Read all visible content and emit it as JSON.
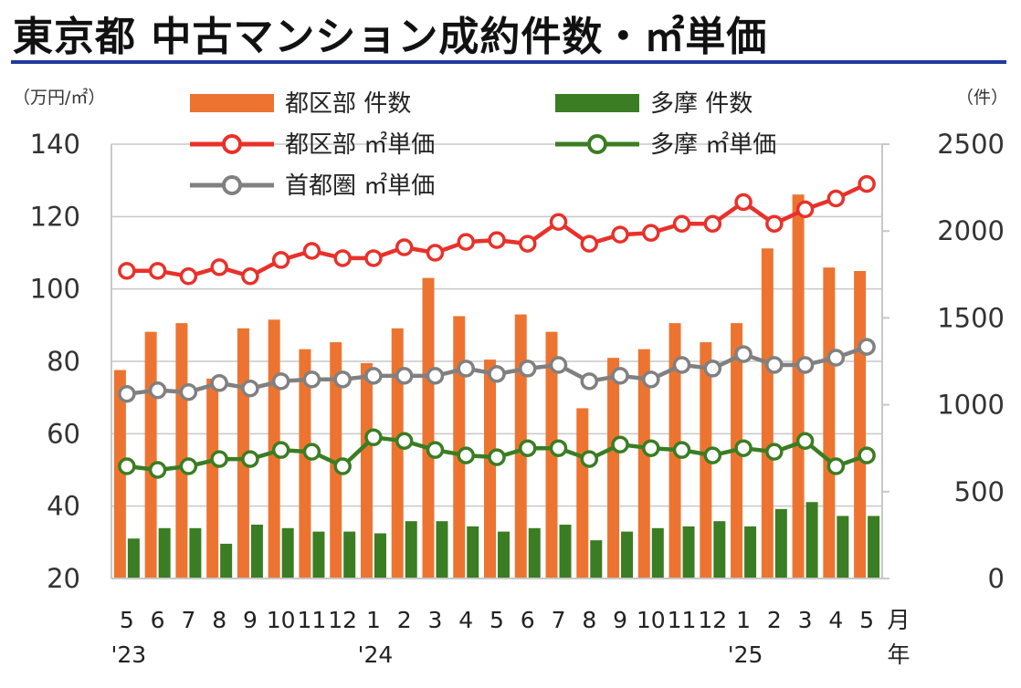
{
  "title": "東京都 中古マンション成約件数・㎡単価",
  "chart_data": {
    "type": "bar+line",
    "title": "東京都 中古マンション成約件数・㎡単価",
    "left_axis": {
      "unit": "（万円/㎡）",
      "ylim": [
        20,
        140
      ],
      "ticks": [
        "140",
        "120",
        "100",
        "80",
        "60",
        "40",
        "20"
      ]
    },
    "right_axis": {
      "unit": "（件）",
      "ylim": [
        0,
        2500
      ],
      "ticks": [
        "2500",
        "2000",
        "1500",
        "1000",
        "500",
        "0"
      ]
    },
    "categories": [
      "5",
      "6",
      "7",
      "8",
      "9",
      "10",
      "11",
      "12",
      "1",
      "2",
      "3",
      "4",
      "5",
      "6",
      "7",
      "8",
      "9",
      "10",
      "11",
      "12",
      "1",
      "2",
      "3",
      "4",
      "5"
    ],
    "month_unit": "月",
    "year_labels": [
      {
        "label": "'23",
        "index": 0
      },
      {
        "label": "'24",
        "index": 8
      },
      {
        "label": "'25",
        "index": 20
      }
    ],
    "year_unit": "年",
    "series": [
      {
        "name": "都区部 件数",
        "type": "bar",
        "axis": "right",
        "color": "#ed7430",
        "values": [
          1200,
          1420,
          1470,
          1150,
          1440,
          1490,
          1320,
          1360,
          1240,
          1440,
          1730,
          1510,
          1260,
          1520,
          1420,
          980,
          1270,
          1320,
          1470,
          1360,
          1470,
          1900,
          2210,
          1790,
          1770
        ]
      },
      {
        "name": "多摩 件数",
        "type": "bar",
        "axis": "right",
        "color": "#3a7d23",
        "values": [
          230,
          290,
          290,
          200,
          310,
          290,
          270,
          270,
          260,
          330,
          330,
          300,
          270,
          290,
          310,
          220,
          270,
          290,
          300,
          330,
          300,
          400,
          440,
          360,
          360
        ]
      },
      {
        "name": "都区部 ㎡単価",
        "type": "line",
        "axis": "left",
        "color": "#e8312a",
        "values": [
          105,
          105,
          103.5,
          106,
          103.5,
          108,
          110.5,
          108.5,
          108.5,
          111.5,
          110,
          113,
          113.5,
          112.5,
          118.5,
          112.5,
          115,
          115.5,
          118,
          118,
          124,
          118,
          122,
          125,
          129
        ]
      },
      {
        "name": "多摩 ㎡単価",
        "type": "line",
        "axis": "left",
        "color": "#3a7d23",
        "values": [
          51,
          50,
          51,
          53,
          53,
          55.5,
          55,
          51,
          59,
          58,
          55.5,
          54,
          53.5,
          56,
          56,
          53,
          57,
          56,
          55.5,
          54,
          56,
          55,
          58,
          51,
          54
        ]
      },
      {
        "name": "首都圏 ㎡単価",
        "type": "line",
        "axis": "left",
        "color": "#808080",
        "values": [
          71,
          72,
          71.5,
          74,
          72.5,
          74.5,
          75,
          75,
          76,
          76,
          76,
          78,
          76.5,
          78,
          79,
          74.5,
          76,
          75,
          79,
          78,
          82,
          79,
          79,
          81,
          84
        ]
      }
    ]
  }
}
